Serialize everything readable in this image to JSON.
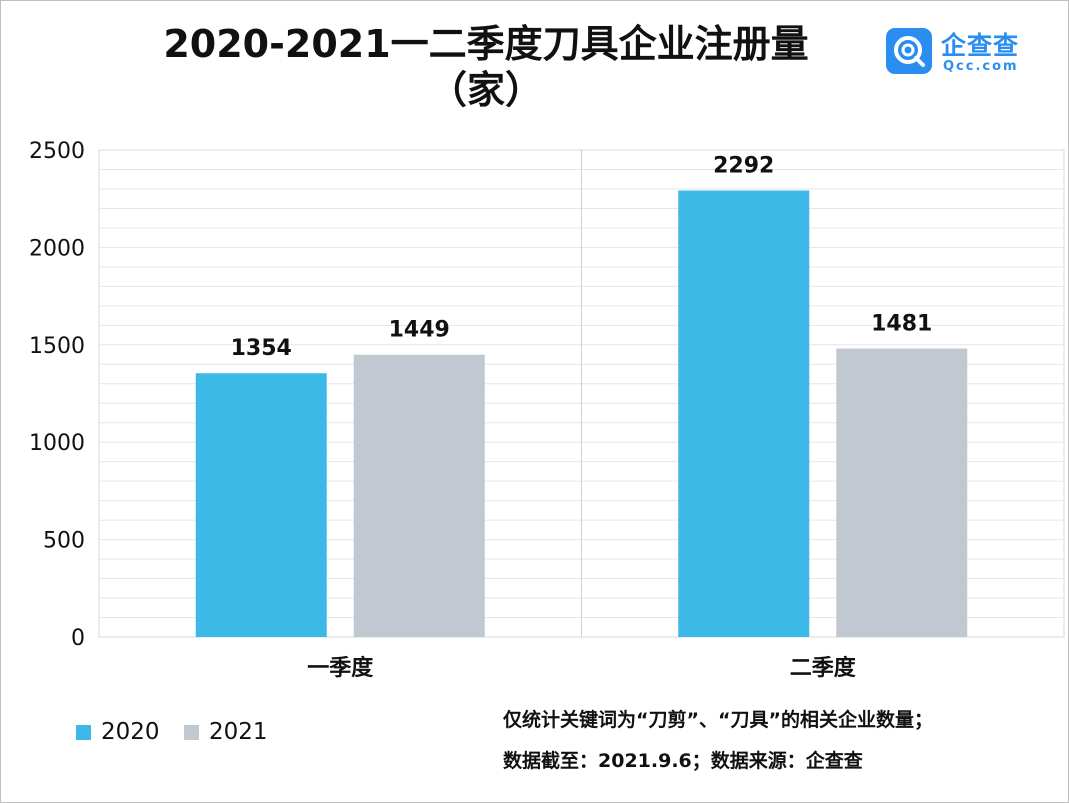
{
  "brand": {
    "name": "企查查",
    "domain": "Qcc.com"
  },
  "notes": {
    "line1": "仅统计关键词为“刀剪”、“刀具”的相关企业数量；",
    "line2": "数据截至：2021.9.6；数据来源：企查查"
  },
  "chart_data": {
    "type": "bar",
    "title": "2020-2021一二季度刀具企业注册量\n（家）",
    "categories": [
      "一季度",
      "二季度"
    ],
    "series": [
      {
        "name": "2020",
        "values": [
          1354,
          2292
        ],
        "color": "#3cb9e6"
      },
      {
        "name": "2021",
        "values": [
          1449,
          1481
        ],
        "color": "#c2c8d1"
      }
    ],
    "yticks": [
      "0",
      "500",
      "1000",
      "1500",
      "2000",
      "2500"
    ],
    "ylim": [
      0,
      2500
    ],
    "grid": true,
    "legend": "bottom-left",
    "xlabel": "",
    "ylabel": ""
  }
}
